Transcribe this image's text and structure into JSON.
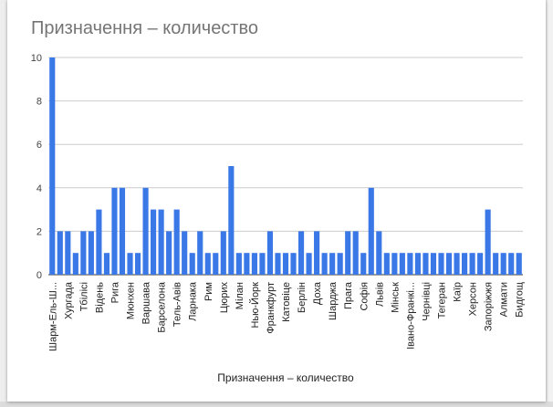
{
  "chart_data": {
    "type": "bar",
    "title": "Призначення – количество",
    "xlabel": "Призначення – количество",
    "ylabel": "",
    "ylim": [
      0,
      10
    ],
    "yticks": [
      0,
      2,
      4,
      6,
      8,
      10
    ],
    "grid": true,
    "legend": "none",
    "bar_color": "#3b78e7",
    "categories": [
      "Шарм-Ель-Ш...",
      "",
      "Хургада",
      "",
      "Тбілісі",
      "",
      "Відень",
      "",
      "Рига",
      "",
      "Мюнхен",
      "",
      "Варшава",
      "",
      "Барселона",
      "",
      "Тель-Авів",
      "",
      "Ларнака",
      "",
      "Рим",
      "",
      "Цюрих",
      "",
      "Мілан",
      "",
      "Нью-Йорк",
      "",
      "Франкфурт",
      "",
      "Катовіце",
      "",
      "Берлін",
      "",
      "Доха",
      "",
      "Шарджа",
      "",
      "Прага",
      "",
      "Софія",
      "",
      "Львів",
      "",
      "Мінськ",
      "",
      "Івано-Франкі...",
      "",
      "Чернівці",
      "",
      "Тегеран",
      "",
      "Каїр",
      "",
      "Херсон",
      "",
      "Запоріжжя",
      "",
      "Алмати",
      "",
      "Бидгощ"
    ],
    "values": [
      10,
      2,
      2,
      1,
      2,
      2,
      3,
      1,
      4,
      4,
      1,
      1,
      4,
      3,
      3,
      2,
      3,
      2,
      1,
      2,
      1,
      1,
      2,
      5,
      1,
      1,
      1,
      1,
      2,
      1,
      1,
      1,
      2,
      1,
      2,
      1,
      1,
      1,
      2,
      2,
      1,
      4,
      2,
      1,
      1,
      1,
      1,
      1,
      1,
      1,
      1,
      1,
      1,
      1,
      1,
      1,
      3,
      1,
      1,
      1,
      1
    ]
  }
}
